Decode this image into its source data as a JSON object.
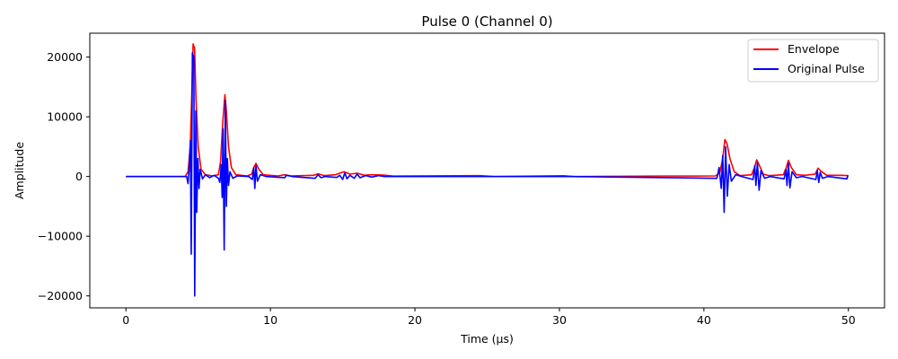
{
  "chart_data": {
    "type": "line",
    "title": "Pulse 0 (Channel 0)",
    "xlabel": "Time (µs)",
    "ylabel": "Amplitude",
    "xlim": [
      -2.5,
      52.5
    ],
    "ylim": [
      -22000,
      24000
    ],
    "x_ticks": [
      0,
      10,
      20,
      30,
      40,
      50
    ],
    "y_ticks": [
      -20000,
      -10000,
      0,
      10000,
      20000
    ],
    "x_tick_labels": [
      "0",
      "10",
      "20",
      "30",
      "40",
      "50"
    ],
    "y_tick_labels": [
      "−20000",
      "−10000",
      "0",
      "10000",
      "20000"
    ],
    "grid": false,
    "legend_position": "top-right",
    "series": [
      {
        "name": "Envelope",
        "color": "#ff0000",
        "points": [
          [
            0,
            0
          ],
          [
            4.1,
            0
          ],
          [
            4.3,
            800
          ],
          [
            4.45,
            5000
          ],
          [
            4.55,
            13000
          ],
          [
            4.65,
            22200
          ],
          [
            4.75,
            21500
          ],
          [
            4.85,
            13000
          ],
          [
            5.0,
            5000
          ],
          [
            5.2,
            1200
          ],
          [
            5.5,
            300
          ],
          [
            6.0,
            100
          ],
          [
            6.4,
            300
          ],
          [
            6.55,
            2500
          ],
          [
            6.7,
            9000
          ],
          [
            6.85,
            13700
          ],
          [
            6.95,
            11000
          ],
          [
            7.1,
            5000
          ],
          [
            7.3,
            1500
          ],
          [
            7.6,
            300
          ],
          [
            8.4,
            100
          ],
          [
            8.7,
            400
          ],
          [
            8.85,
            1500
          ],
          [
            9.0,
            2200
          ],
          [
            9.2,
            1200
          ],
          [
            9.5,
            300
          ],
          [
            10.5,
            100
          ],
          [
            11.0,
            300
          ],
          [
            11.4,
            100
          ],
          [
            13.0,
            200
          ],
          [
            13.3,
            450
          ],
          [
            13.7,
            150
          ],
          [
            14.5,
            300
          ],
          [
            15.1,
            800
          ],
          [
            15.5,
            400
          ],
          [
            16.0,
            550
          ],
          [
            16.5,
            200
          ],
          [
            17.0,
            300
          ],
          [
            17.8,
            250
          ],
          [
            18.5,
            80
          ],
          [
            24.5,
            150
          ],
          [
            25.5,
            0
          ],
          [
            30.3,
            120
          ],
          [
            31,
            0
          ],
          [
            37,
            80
          ],
          [
            39.5,
            80
          ],
          [
            40.8,
            100
          ],
          [
            41.1,
            600
          ],
          [
            41.3,
            3000
          ],
          [
            41.45,
            6200
          ],
          [
            41.6,
            5500
          ],
          [
            41.8,
            3000
          ],
          [
            42.1,
            800
          ],
          [
            42.5,
            150
          ],
          [
            43.3,
            300
          ],
          [
            43.5,
            1500
          ],
          [
            43.65,
            2800
          ],
          [
            43.85,
            1800
          ],
          [
            44.1,
            400
          ],
          [
            44.5,
            150
          ],
          [
            45.5,
            300
          ],
          [
            45.7,
            1500
          ],
          [
            45.85,
            2700
          ],
          [
            46.05,
            1500
          ],
          [
            46.4,
            300
          ],
          [
            47.0,
            200
          ],
          [
            47.7,
            400
          ],
          [
            47.9,
            1400
          ],
          [
            48.1,
            900
          ],
          [
            48.5,
            200
          ],
          [
            49.5,
            200
          ],
          [
            50,
            150
          ]
        ]
      },
      {
        "name": "Original Pulse",
        "color": "#0000ff",
        "points": [
          [
            0,
            0
          ],
          [
            4.2,
            0
          ],
          [
            4.3,
            -1200
          ],
          [
            4.38,
            1500
          ],
          [
            4.46,
            6000
          ],
          [
            4.52,
            -13000
          ],
          [
            4.6,
            20700
          ],
          [
            4.7,
            20000
          ],
          [
            4.76,
            -20000
          ],
          [
            4.84,
            11000
          ],
          [
            4.9,
            -6000
          ],
          [
            4.98,
            3000
          ],
          [
            5.06,
            -2000
          ],
          [
            5.14,
            1200
          ],
          [
            5.3,
            -400
          ],
          [
            5.5,
            300
          ],
          [
            5.8,
            -200
          ],
          [
            6.1,
            200
          ],
          [
            6.4,
            -300
          ],
          [
            6.5,
            -1000
          ],
          [
            6.6,
            2000
          ],
          [
            6.66,
            -3500
          ],
          [
            6.72,
            8000
          ],
          [
            6.8,
            -12300
          ],
          [
            6.88,
            12700
          ],
          [
            6.95,
            -5000
          ],
          [
            7.02,
            3000
          ],
          [
            7.1,
            -1500
          ],
          [
            7.2,
            800
          ],
          [
            7.4,
            -300
          ],
          [
            7.7,
            100
          ],
          [
            8.5,
            0
          ],
          [
            8.75,
            -500
          ],
          [
            8.85,
            1500
          ],
          [
            8.92,
            -2000
          ],
          [
            9.0,
            1800
          ],
          [
            9.1,
            -800
          ],
          [
            9.3,
            300
          ],
          [
            9.7,
            0
          ],
          [
            11.0,
            -200
          ],
          [
            11.1,
            200
          ],
          [
            11.5,
            0
          ],
          [
            13.1,
            -300
          ],
          [
            13.3,
            300
          ],
          [
            13.5,
            -200
          ],
          [
            13.8,
            0
          ],
          [
            14.6,
            -150
          ],
          [
            14.8,
            200
          ],
          [
            15.0,
            -500
          ],
          [
            15.15,
            600
          ],
          [
            15.3,
            -400
          ],
          [
            15.5,
            200
          ],
          [
            15.8,
            -300
          ],
          [
            16.0,
            400
          ],
          [
            16.2,
            -200
          ],
          [
            16.6,
            150
          ],
          [
            17.0,
            -100
          ],
          [
            17.5,
            150
          ],
          [
            17.9,
            0
          ],
          [
            24.5,
            0
          ],
          [
            30.3,
            0
          ],
          [
            40.9,
            -300
          ],
          [
            41.05,
            1500
          ],
          [
            41.2,
            -2000
          ],
          [
            41.3,
            3500
          ],
          [
            41.4,
            -6000
          ],
          [
            41.5,
            5000
          ],
          [
            41.62,
            -3300
          ],
          [
            41.75,
            2000
          ],
          [
            41.9,
            -800
          ],
          [
            42.2,
            300
          ],
          [
            42.6,
            0
          ],
          [
            43.4,
            -500
          ],
          [
            43.52,
            1800
          ],
          [
            43.6,
            -1500
          ],
          [
            43.7,
            2300
          ],
          [
            43.82,
            -2300
          ],
          [
            43.95,
            1000
          ],
          [
            44.2,
            -300
          ],
          [
            44.6,
            0
          ],
          [
            45.55,
            -400
          ],
          [
            45.68,
            1200
          ],
          [
            45.75,
            -1500
          ],
          [
            45.85,
            2200
          ],
          [
            45.95,
            -1900
          ],
          [
            46.1,
            800
          ],
          [
            46.4,
            -200
          ],
          [
            46.8,
            0
          ],
          [
            47.75,
            -500
          ],
          [
            47.85,
            1000
          ],
          [
            47.95,
            -1000
          ],
          [
            48.05,
            700
          ],
          [
            48.2,
            -300
          ],
          [
            48.6,
            0
          ],
          [
            49.9,
            -400
          ],
          [
            49.95,
            100
          ],
          [
            50,
            0
          ]
        ]
      }
    ]
  }
}
